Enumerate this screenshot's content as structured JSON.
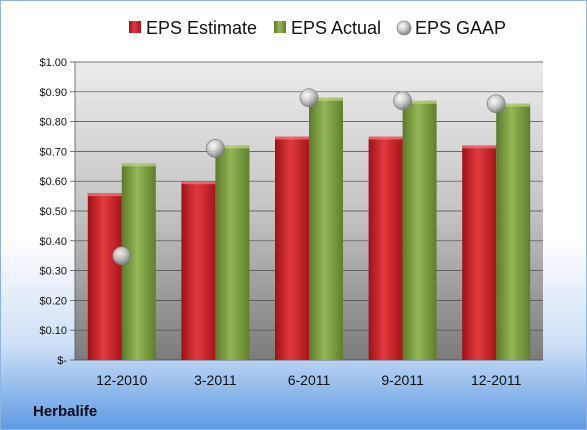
{
  "colors": {
    "eps_estimate": "#c21c24",
    "eps_actual": "#77993a",
    "eps_gaap": "#a6a6a6",
    "background_top": "#ffffff",
    "background_bottom": "#5b9ae3",
    "plot_top": "#ededed",
    "plot_bottom": "#7f7f7f"
  },
  "footer": {
    "company": "Herbalife"
  },
  "chart_data": {
    "type": "bar",
    "title": "",
    "xlabel": "",
    "ylabel": "",
    "categories": [
      "12-2010",
      "3-2011",
      "6-2011",
      "9-2011",
      "12-2011"
    ],
    "ylim": [
      0,
      1.0
    ],
    "y_tick_labels": [
      "$-",
      "$0.10",
      "$0.20",
      "$0.30",
      "$0.40",
      "$0.50",
      "$0.60",
      "$0.70",
      "$0.80",
      "$0.90",
      "$1.00"
    ],
    "grid": true,
    "legend_position": "top",
    "series": [
      {
        "name": "EPS Estimate",
        "kind": "bar",
        "values": [
          0.56,
          0.6,
          0.75,
          0.75,
          0.72
        ]
      },
      {
        "name": "EPS Actual",
        "kind": "bar",
        "values": [
          0.66,
          0.72,
          0.88,
          0.87,
          0.86
        ]
      },
      {
        "name": "EPS GAAP",
        "kind": "scatter",
        "values": [
          0.35,
          0.71,
          0.88,
          0.87,
          0.86
        ]
      }
    ]
  }
}
